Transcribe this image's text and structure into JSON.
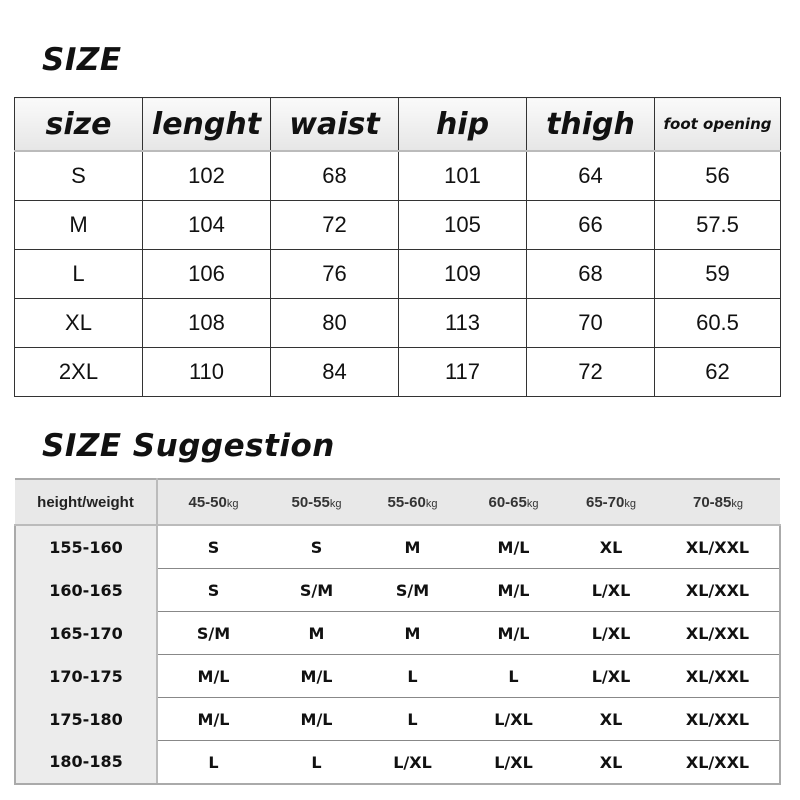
{
  "size_chart": {
    "title": "SIZE",
    "headers": [
      "size",
      "lenght",
      "waist",
      "hip",
      "thigh",
      "foot opening"
    ],
    "rows": [
      [
        "S",
        "102",
        "68",
        "101",
        "64",
        "56"
      ],
      [
        "M",
        "104",
        "72",
        "105",
        "66",
        "57.5"
      ],
      [
        "L",
        "106",
        "76",
        "109",
        "68",
        "59"
      ],
      [
        "XL",
        "108",
        "80",
        "113",
        "70",
        "60.5"
      ],
      [
        "2XL",
        "110",
        "84",
        "117",
        "72",
        "62"
      ]
    ]
  },
  "suggestion": {
    "title": "SIZE Suggestion",
    "corner_header": "height/weight",
    "weight_unit": "kg",
    "weight_ranges": [
      "45-50",
      "50-55",
      "55-60",
      "60-65",
      "65-70",
      "70-85"
    ],
    "rows": [
      {
        "height": "155-160",
        "sizes": [
          "S",
          "S",
          "M",
          "M/L",
          "XL",
          "XL/XXL"
        ]
      },
      {
        "height": "160-165",
        "sizes": [
          "S",
          "S/M",
          "S/M",
          "M/L",
          "L/XL",
          "XL/XXL"
        ]
      },
      {
        "height": "165-170",
        "sizes": [
          "S/M",
          "M",
          "M",
          "M/L",
          "L/XL",
          "XL/XXL"
        ]
      },
      {
        "height": "170-175",
        "sizes": [
          "M/L",
          "M/L",
          "L",
          "L",
          "L/XL",
          "XL/XXL"
        ]
      },
      {
        "height": "175-180",
        "sizes": [
          "M/L",
          "M/L",
          "L",
          "L/XL",
          "XL",
          "XL/XXL"
        ]
      },
      {
        "height": "180-185",
        "sizes": [
          "L",
          "L",
          "L/XL",
          "L/XL",
          "XL",
          "XL/XXL"
        ]
      }
    ]
  }
}
